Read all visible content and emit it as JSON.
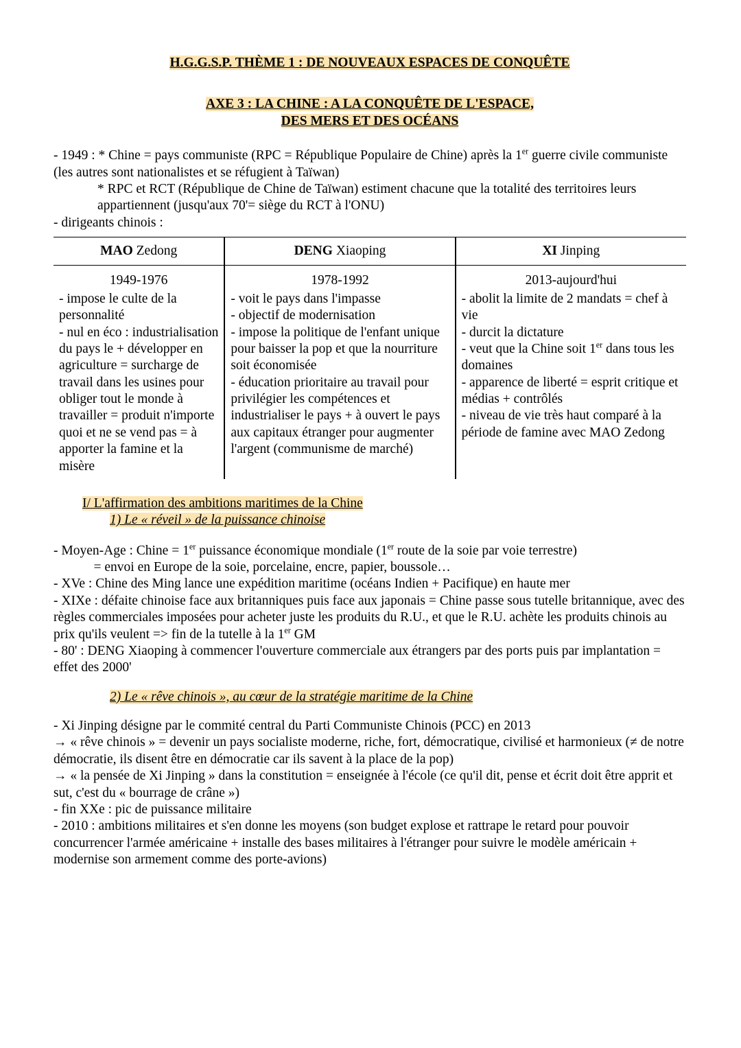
{
  "colors": {
    "highlight": "#fde5b2",
    "text": "#000000",
    "background": "#ffffff",
    "border": "#000000"
  },
  "title": "H.G.G.S.P.   THÈME 1 : DE NOUVEAUX ESPACES DE CONQUÊTE",
  "subtitle_line1": "AXE 3 : LA CHINE : A LA CONQUÊTE DE L'ESPACE,",
  "subtitle_line2": "DES MERS ET DES OCÉANS",
  "intro": {
    "l1a": "- 1949 : * Chine = pays communiste (RPC = République Populaire de Chine) après la 1",
    "l1sup": "er",
    "l1b": " guerre civile communiste (les autres sont nationalistes et se réfugient à Taïwan)",
    "l2": "* RPC et RCT (République de Chine de Taïwan) estiment chacune que la totalité des territoires leurs appartiennent (jusqu'aux 70'= siège du RCT à l'ONU)",
    "l3": "- dirigeants chinois :"
  },
  "table": {
    "headers": [
      {
        "bold": "MAO",
        "rest": " Zedong"
      },
      {
        "bold": "DENG",
        "rest": " Xiaoping"
      },
      {
        "bold": "XI",
        "rest": " Jinping"
      }
    ],
    "rows": [
      {
        "period": "1949-1976",
        "body": "- impose le culte de la personnalité\n- nul en éco : industrialisation du pays le + développer en agriculture = surcharge de travail dans les usines pour obliger tout le monde à travailler = produit n'importe quoi et ne se vend pas = à apporter la famine et la misère"
      },
      {
        "period": "1978-1992",
        "body": "- voit le pays dans l'impasse\n- objectif de modernisation\n- impose la politique de l'enfant unique pour baisser la pop et que la nourriture soit économisée\n- éducation prioritaire au travail pour privilégier les compétences et industrialiser le pays + à ouvert le pays aux capitaux étranger pour augmenter l'argent (communisme de marché)"
      },
      {
        "period": "2013-aujourd'hui",
        "body_parts": {
          "a": "- abolit la limite de 2 mandats = chef à vie\n- durcit la dictature\n- veut que la Chine soit 1",
          "sup": "er",
          "b": " dans tous les domaines\n- apparence de liberté = esprit critique et médias + contrôlés\n- niveau de vie très haut comparé à la période de famine avec MAO Zedong"
        }
      }
    ]
  },
  "sections": {
    "s1": {
      "h1": "I/ L'affirmation des ambitions maritimes de la Chine",
      "s1_1": {
        "h2": "1) Le « réveil » de la puissance chinoise",
        "p": {
          "l1a": "- Moyen-Age : Chine = 1",
          "l1sup": "er",
          "l1b": " puissance économique mondiale (1",
          "l1sup2": "er",
          "l1c": " route de la soie par voie terrestre)",
          "l2": "            = envoi en Europe de la soie, porcelaine, encre, papier, boussole…",
          "l3": "- XVe : Chine des Ming lance une expédition maritime (océans Indien + Pacifique) en haute mer",
          "l4a": "- XIXe : défaite chinoise face aux britanniques puis face aux japonais = Chine passe sous tutelle britannique, avec des règles commerciales imposées pour acheter juste les produits du R.U., et que le R.U. achète les produits chinois au prix qu'ils veulent => fin de la tutelle à la 1",
          "l4sup": "er",
          "l4b": " GM",
          "l5": "- 80' : DENG Xiaoping à commencer l'ouverture commerciale aux étrangers par des ports puis par implantation = effet des 2000'"
        }
      },
      "s1_2": {
        "h2": "2) Le « rêve chinois », au cœur de la stratégie maritime de la Chine",
        "p": "- Xi Jinping désigne par le commité central du Parti Communiste Chinois (PCC) en 2013\n → « rêve chinois » = devenir un pays socialiste moderne, riche, fort, démocratique, civilisé et harmonieux (≠ de notre démocratie, ils disent être en démocratie car ils savent à la place de la pop)\n → « la pensée de Xi Jinping » dans la constitution = enseignée à l'école (ce qu'il dit, pense et écrit doit être apprit et sut, c'est du « bourrage de crâne »)\n- fin XXe : pic de puissance militaire\n- 2010 : ambitions militaires et s'en donne les moyens (son budget explose et rattrape le retard pour pouvoir concurrencer l'armée américaine + installe des bases militaires à l'étranger pour suivre le modèle américain + modernise son armement comme des porte-avions)"
      }
    }
  }
}
